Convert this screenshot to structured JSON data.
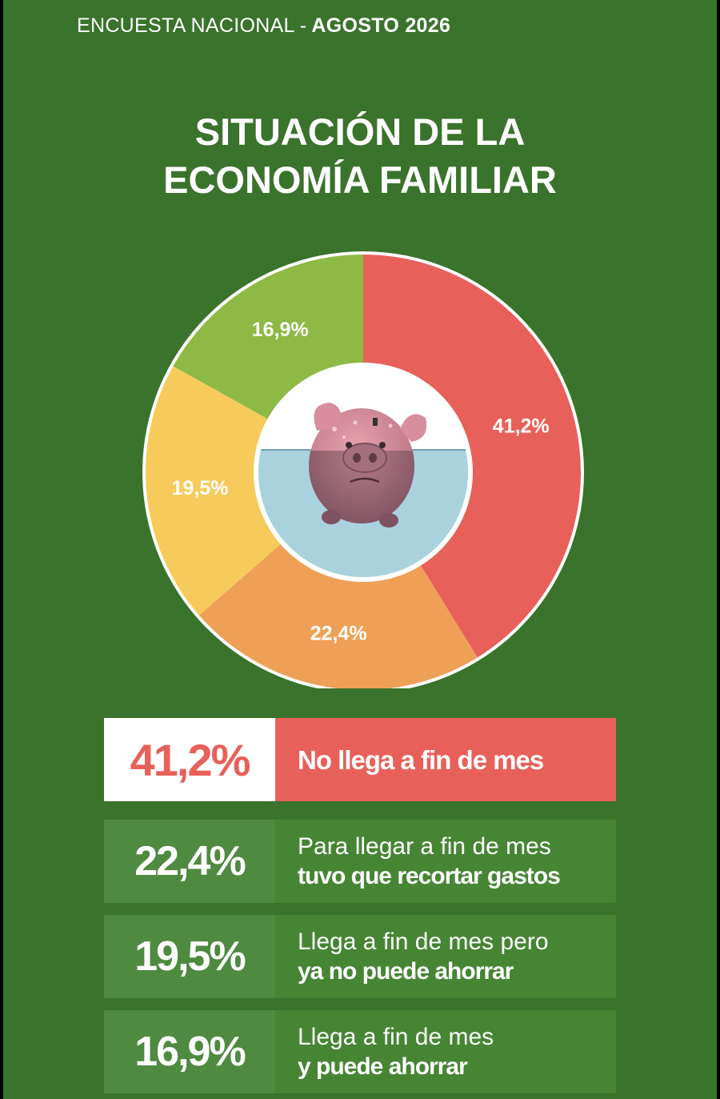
{
  "header": {
    "left": "ENCUESTA NACIONAL",
    "sep": "-",
    "right": "AGOSTO 2026"
  },
  "title": {
    "line1": "SITUACIÓN DE LA",
    "line2": "ECONOMÍA FAMILIAR"
  },
  "colors": {
    "background": "#3a732b",
    "red": "#e8605a",
    "orange": "#efa057",
    "yellow": "#f6cb5c",
    "green": "#8cba45"
  },
  "chart_data": {
    "type": "pie",
    "donut": true,
    "center_image": "piggy-bank-icon",
    "slices": [
      {
        "label": "41,2%",
        "value": 41.2,
        "color": "#e8605a"
      },
      {
        "label": "22,4%",
        "value": 22.4,
        "color": "#efa057"
      },
      {
        "label": "19,5%",
        "value": 19.5,
        "color": "#f6cb5c"
      },
      {
        "label": "16,9%",
        "value": 16.9,
        "color": "#8cba45"
      }
    ]
  },
  "legend_table": [
    {
      "pct": "41,2%",
      "line1": "No llega a fin de mes",
      "line2": ""
    },
    {
      "pct": "22,4%",
      "line1": "Para llegar a fin de mes",
      "line2": "tuvo que recortar gastos"
    },
    {
      "pct": "19,5%",
      "line1": "Llega a fin de mes pero",
      "line2": "ya no puede ahorrar"
    },
    {
      "pct": "16,9%",
      "line1": "Llega a fin de mes",
      "line2": "y puede ahorrar"
    }
  ]
}
